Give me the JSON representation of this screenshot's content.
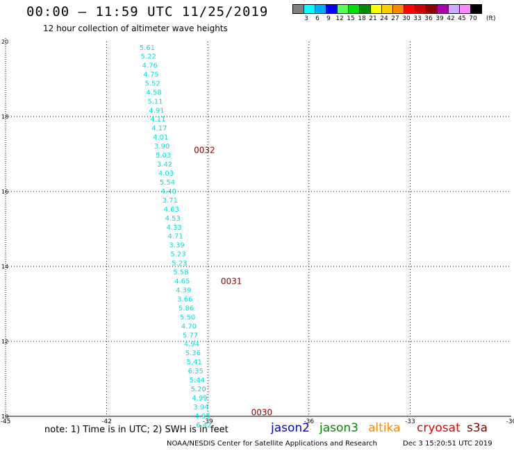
{
  "header": {
    "title": "00:00 – 11:59 UTC 11/25/2019",
    "subtitle": "12 hour collection of altimeter wave heights"
  },
  "colorbar": {
    "cells": [
      {
        "color": "#808080"
      },
      {
        "color": "#00ffff"
      },
      {
        "color": "#00aaff"
      },
      {
        "color": "#0000ff"
      },
      {
        "color": "#55ff55"
      },
      {
        "color": "#00dd00"
      },
      {
        "color": "#008800"
      },
      {
        "color": "#ffff00"
      },
      {
        "color": "#ffcc00"
      },
      {
        "color": "#ff8800"
      },
      {
        "color": "#ff0000"
      },
      {
        "color": "#cc0000"
      },
      {
        "color": "#880000"
      },
      {
        "color": "#aa00aa"
      },
      {
        "color": "#ccaaff"
      },
      {
        "color": "#ff88ff"
      },
      {
        "color": "#000000"
      }
    ],
    "labels": [
      "3",
      "6",
      "9",
      "12",
      "15",
      "18",
      "21",
      "24",
      "27",
      "30",
      "33",
      "36",
      "39",
      "42",
      "45",
      "70"
    ],
    "unit": "(ft)"
  },
  "chart_data": {
    "type": "scatter",
    "xlim": [
      -45,
      -30
    ],
    "ylim": [
      10,
      20
    ],
    "x_ticks": [
      -45,
      -42,
      -39,
      -36,
      -33,
      -30
    ],
    "y_ticks": [
      10,
      12,
      14,
      16,
      18,
      20
    ],
    "grid": true,
    "series": [
      {
        "name": "jason2",
        "color": "#00dddd",
        "points": [
          {
            "x": -40.8,
            "y": 19.85,
            "v": "5.61"
          },
          {
            "x": -40.76,
            "y": 19.62,
            "v": "5.22"
          },
          {
            "x": -40.72,
            "y": 19.38,
            "v": "4.76"
          },
          {
            "x": -40.68,
            "y": 19.14,
            "v": "4.75"
          },
          {
            "x": -40.64,
            "y": 18.9,
            "v": "5.52"
          },
          {
            "x": -40.6,
            "y": 18.66,
            "v": "4.58"
          },
          {
            "x": -40.56,
            "y": 18.42,
            "v": "5.11"
          },
          {
            "x": -40.52,
            "y": 18.18,
            "v": "4.91"
          },
          {
            "x": -40.48,
            "y": 17.94,
            "v": "4.11"
          },
          {
            "x": -40.44,
            "y": 17.7,
            "v": "4.17"
          },
          {
            "x": -40.4,
            "y": 17.46,
            "v": "4.01"
          },
          {
            "x": -40.36,
            "y": 17.22,
            "v": "3.90"
          },
          {
            "x": -40.32,
            "y": 16.98,
            "v": "5.03"
          },
          {
            "x": -40.28,
            "y": 16.74,
            "v": "3.42"
          },
          {
            "x": -40.24,
            "y": 16.5,
            "v": "4.03"
          },
          {
            "x": -40.2,
            "y": 16.26,
            "v": "5.54"
          },
          {
            "x": -40.16,
            "y": 16.02,
            "v": "4.40"
          },
          {
            "x": -40.12,
            "y": 15.78,
            "v": "3.71"
          },
          {
            "x": -40.08,
            "y": 15.54,
            "v": "4.63"
          },
          {
            "x": -40.04,
            "y": 15.3,
            "v": "4.53"
          },
          {
            "x": -40.0,
            "y": 15.06,
            "v": "4.33"
          },
          {
            "x": -39.96,
            "y": 14.82,
            "v": "4.71"
          },
          {
            "x": -39.92,
            "y": 14.58,
            "v": "3.39"
          },
          {
            "x": -39.88,
            "y": 14.34,
            "v": "5.23"
          },
          {
            "x": -39.84,
            "y": 14.1,
            "v": "5.23"
          },
          {
            "x": -39.8,
            "y": 13.86,
            "v": "5.58"
          },
          {
            "x": -39.76,
            "y": 13.62,
            "v": "4.65"
          },
          {
            "x": -39.72,
            "y": 13.38,
            "v": "4.39"
          },
          {
            "x": -39.68,
            "y": 13.14,
            "v": "3.66"
          },
          {
            "x": -39.64,
            "y": 12.9,
            "v": "5.86"
          },
          {
            "x": -39.6,
            "y": 12.66,
            "v": "5.50"
          },
          {
            "x": -39.56,
            "y": 12.42,
            "v": "4.70"
          },
          {
            "x": -39.52,
            "y": 12.18,
            "v": "5.77"
          },
          {
            "x": -39.48,
            "y": 11.94,
            "v": "4.94"
          },
          {
            "x": -39.44,
            "y": 11.7,
            "v": "5.36"
          },
          {
            "x": -39.4,
            "y": 11.46,
            "v": "5.41"
          },
          {
            "x": -39.36,
            "y": 11.22,
            "v": "6.35"
          },
          {
            "x": -39.32,
            "y": 10.98,
            "v": "5.44"
          },
          {
            "x": -39.28,
            "y": 10.74,
            "v": "5.20"
          },
          {
            "x": -39.24,
            "y": 10.5,
            "v": "4.99"
          },
          {
            "x": -39.2,
            "y": 10.26,
            "v": "3.94"
          },
          {
            "x": -39.16,
            "y": 10.02,
            "v": "4.95"
          },
          {
            "x": -39.12,
            "y": 9.78,
            "v": "6.42"
          }
        ]
      }
    ],
    "time_labels": [
      {
        "x": -39.1,
        "y": 17.1,
        "text": "0032"
      },
      {
        "x": -38.3,
        "y": 13.6,
        "text": "0031"
      },
      {
        "x": -37.4,
        "y": 10.1,
        "text": "0030"
      }
    ],
    "time_label_color": "#880000"
  },
  "footer": {
    "note": "note:  1) Time is in UTC;  2) SWH is in feet",
    "satellites": [
      {
        "name": "jason2",
        "color": "#0000cc"
      },
      {
        "name": "jason3",
        "color": "#008800"
      },
      {
        "name": "altika",
        "color": "#ff8800"
      },
      {
        "name": "cryosat",
        "color": "#dd0000"
      },
      {
        "name": "s3a",
        "color": "#880000"
      }
    ],
    "credit": "NOAA/NESDIS Center for Satellite Applications and Research",
    "timestamp": "Dec  3 15:20:51 UTC 2019"
  }
}
